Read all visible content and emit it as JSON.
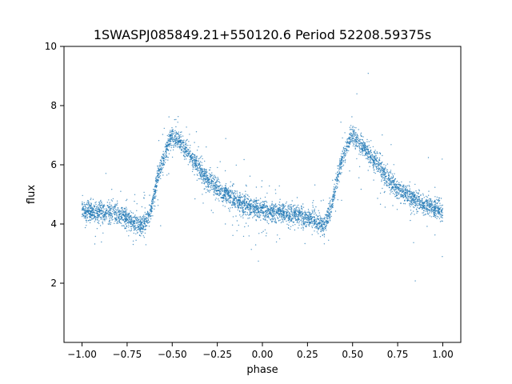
{
  "chart_data": {
    "type": "scatter",
    "title": "1SWASPJ085849.21+550120.6 Period 52208.59375s",
    "xlabel": "phase",
    "ylabel": "flux",
    "xlim": [
      -1.1,
      1.1
    ],
    "ylim": [
      0.0,
      10.0
    ],
    "xticks": [
      "−1.00",
      "−0.75",
      "−0.50",
      "−0.25",
      "0.00",
      "0.25",
      "0.50",
      "0.75",
      "1.00"
    ],
    "xtick_values": [
      -1.0,
      -0.75,
      -0.5,
      -0.25,
      0.0,
      0.25,
      0.5,
      0.75,
      1.0
    ],
    "yticks": [
      "2",
      "4",
      "6",
      "8",
      "10"
    ],
    "ytick_values": [
      2,
      4,
      6,
      8,
      10
    ],
    "grid": false,
    "marker_color": "#1f77b4",
    "series": [
      {
        "description": "folded light curve; flux median trend vs phase (pattern repeats every 1.0 in phase)",
        "x": [
          -1.0,
          -0.9,
          -0.8,
          -0.75,
          -0.7,
          -0.66,
          -0.62,
          -0.58,
          -0.55,
          -0.52,
          -0.5,
          -0.45,
          -0.4,
          -0.35,
          -0.3,
          -0.25,
          -0.2,
          -0.15,
          -0.1,
          -0.05,
          0.0,
          0.05,
          0.1,
          0.15,
          0.2,
          0.25,
          0.3,
          0.34,
          0.38,
          0.42,
          0.45,
          0.48,
          0.5,
          0.55,
          0.6,
          0.65,
          0.7,
          0.75,
          0.8,
          0.85,
          0.9,
          0.95,
          1.0
        ],
        "y": [
          4.45,
          4.4,
          4.35,
          4.2,
          4.0,
          3.95,
          4.4,
          5.6,
          6.2,
          6.7,
          7.0,
          6.7,
          6.3,
          5.9,
          5.5,
          5.2,
          5.0,
          4.8,
          4.65,
          4.55,
          4.45,
          4.4,
          4.4,
          4.35,
          4.3,
          4.2,
          4.05,
          3.95,
          4.5,
          5.7,
          6.3,
          6.8,
          7.0,
          6.7,
          6.3,
          5.9,
          5.5,
          5.2,
          5.0,
          4.8,
          4.65,
          4.55,
          4.45
        ]
      }
    ]
  }
}
